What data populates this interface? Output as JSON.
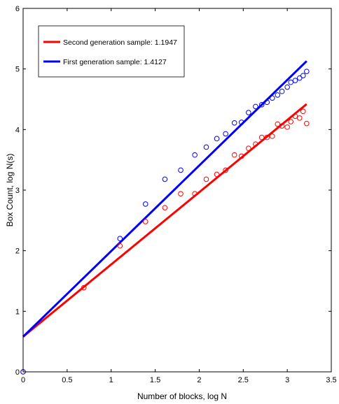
{
  "chart_data": {
    "type": "scatter",
    "xlabel": "Number of blocks, log N",
    "ylabel": "Box Count, log N(s)",
    "xlim": [
      0,
      3.5
    ],
    "ylim": [
      0,
      6
    ],
    "xticks": [
      "0",
      "0.5",
      "1",
      "1.5",
      "2",
      "2.5",
      "3",
      "3.5"
    ],
    "yticks": [
      "0",
      "1",
      "2",
      "3",
      "4",
      "5",
      "6"
    ],
    "grid": false,
    "legend_position": "top-left",
    "series": [
      {
        "name": "Second generation sample: 1.1947",
        "color": "#ff0000",
        "marker": "circle",
        "points": [
          [
            0,
            0
          ],
          [
            0.69,
            1.39
          ],
          [
            1.1,
            2.08
          ],
          [
            1.39,
            2.48
          ],
          [
            1.61,
            2.71
          ],
          [
            1.79,
            2.94
          ],
          [
            1.95,
            2.94
          ],
          [
            2.08,
            3.18
          ],
          [
            2.2,
            3.26
          ],
          [
            2.3,
            3.33
          ],
          [
            2.4,
            3.58
          ],
          [
            2.48,
            3.56
          ],
          [
            2.56,
            3.69
          ],
          [
            2.64,
            3.76
          ],
          [
            2.71,
            3.87
          ],
          [
            2.77,
            3.87
          ],
          [
            2.83,
            3.89
          ],
          [
            2.89,
            4.09
          ],
          [
            2.94,
            4.06
          ],
          [
            3.0,
            4.04
          ],
          [
            3.04,
            4.13
          ],
          [
            3.09,
            4.22
          ],
          [
            3.14,
            4.19
          ],
          [
            3.18,
            4.3
          ],
          [
            3.22,
            4.1
          ]
        ],
        "fit_line": [
          [
            0,
            0.58
          ],
          [
            3.22,
            4.42
          ]
        ]
      },
      {
        "name": "First generation sample: 1.4127",
        "color": "#0000ff",
        "marker": "circle",
        "points": [
          [
            0,
            0
          ],
          [
            1.1,
            2.2
          ],
          [
            1.39,
            2.77
          ],
          [
            1.61,
            3.18
          ],
          [
            1.79,
            3.33
          ],
          [
            1.95,
            3.58
          ],
          [
            2.08,
            3.71
          ],
          [
            2.2,
            3.85
          ],
          [
            2.3,
            3.93
          ],
          [
            2.4,
            4.11
          ],
          [
            2.48,
            4.12
          ],
          [
            2.56,
            4.28
          ],
          [
            2.64,
            4.38
          ],
          [
            2.71,
            4.41
          ],
          [
            2.77,
            4.45
          ],
          [
            2.83,
            4.52
          ],
          [
            2.89,
            4.57
          ],
          [
            2.94,
            4.63
          ],
          [
            3.0,
            4.7
          ],
          [
            3.04,
            4.78
          ],
          [
            3.09,
            4.81
          ],
          [
            3.14,
            4.85
          ],
          [
            3.18,
            4.89
          ],
          [
            3.22,
            4.96
          ]
        ],
        "fit_line": [
          [
            0,
            0.58
          ],
          [
            3.22,
            5.13
          ]
        ]
      }
    ]
  }
}
